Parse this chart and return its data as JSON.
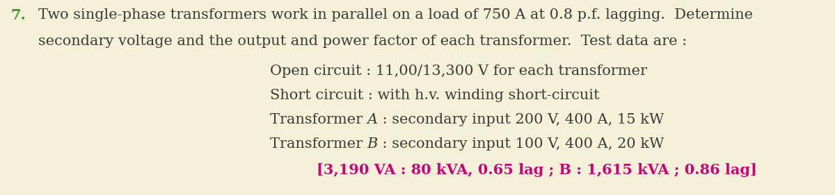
{
  "background_color": "#f5f0d8",
  "number_color": "#4a8c30",
  "main_text_color": "#3a3a3a",
  "answer_color": "#cc0077",
  "font_size_main": 15.0,
  "number_text": "7.",
  "line1": "Two single-phase transformers work in parallel on a load of 750 A at 0.8 p.f. lagging.  Determine",
  "line2": "secondary voltage and the output and power factor of each transformer.  Test data are :",
  "line3": "Open circuit : 11,00/13,300 V for each transformer",
  "line4": "Short circuit : with h.v. winding short-circuit",
  "line5_pre": "Transformer ",
  "line5_italic": "A",
  "line5_post": " : secondary input 200 V, 400 A, 15 kW",
  "line6_pre": "Transformer ",
  "line6_italic": "B",
  "line6_post": " : secondary input 100 V, 400 A, 20 kW",
  "answer_text": "[3,190 VA : 80 kVA, 0.65 lag ; B : 1,615 kVA ; 0.86 lag]"
}
